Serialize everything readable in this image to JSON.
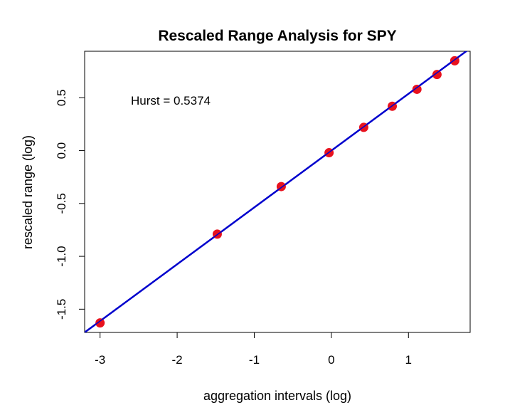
{
  "chart_data": {
    "type": "scatter",
    "title": "Rescaled Range Analysis for SPY",
    "xlabel": "aggregation intervals (log)",
    "ylabel": "rescaled range (log)",
    "xlim": [
      -3.2,
      1.8
    ],
    "ylim": [
      -1.72,
      0.94
    ],
    "xticks": [
      -3,
      -2,
      -1,
      0,
      1
    ],
    "xtick_labels": [
      "-3",
      "-2",
      "-1",
      "0",
      "1"
    ],
    "yticks": [
      -1.5,
      -1.0,
      -0.5,
      0.0,
      0.5
    ],
    "ytick_labels": [
      "-1.5",
      "-1.0",
      "-0.5",
      "0.0",
      "0.5"
    ],
    "grid": false,
    "annotation": "Hurst = 0.5374",
    "points": {
      "x": [
        -3.0,
        -1.48,
        -0.65,
        -0.03,
        0.42,
        0.79,
        1.11,
        1.37,
        1.6
      ],
      "y": [
        -1.63,
        -0.79,
        -0.34,
        -0.02,
        0.22,
        0.42,
        0.58,
        0.72,
        0.85
      ],
      "color": "#e8121e"
    },
    "fit_line": {
      "intercept": 0.0,
      "slope": 0.5374,
      "color": "#0000cd"
    }
  }
}
